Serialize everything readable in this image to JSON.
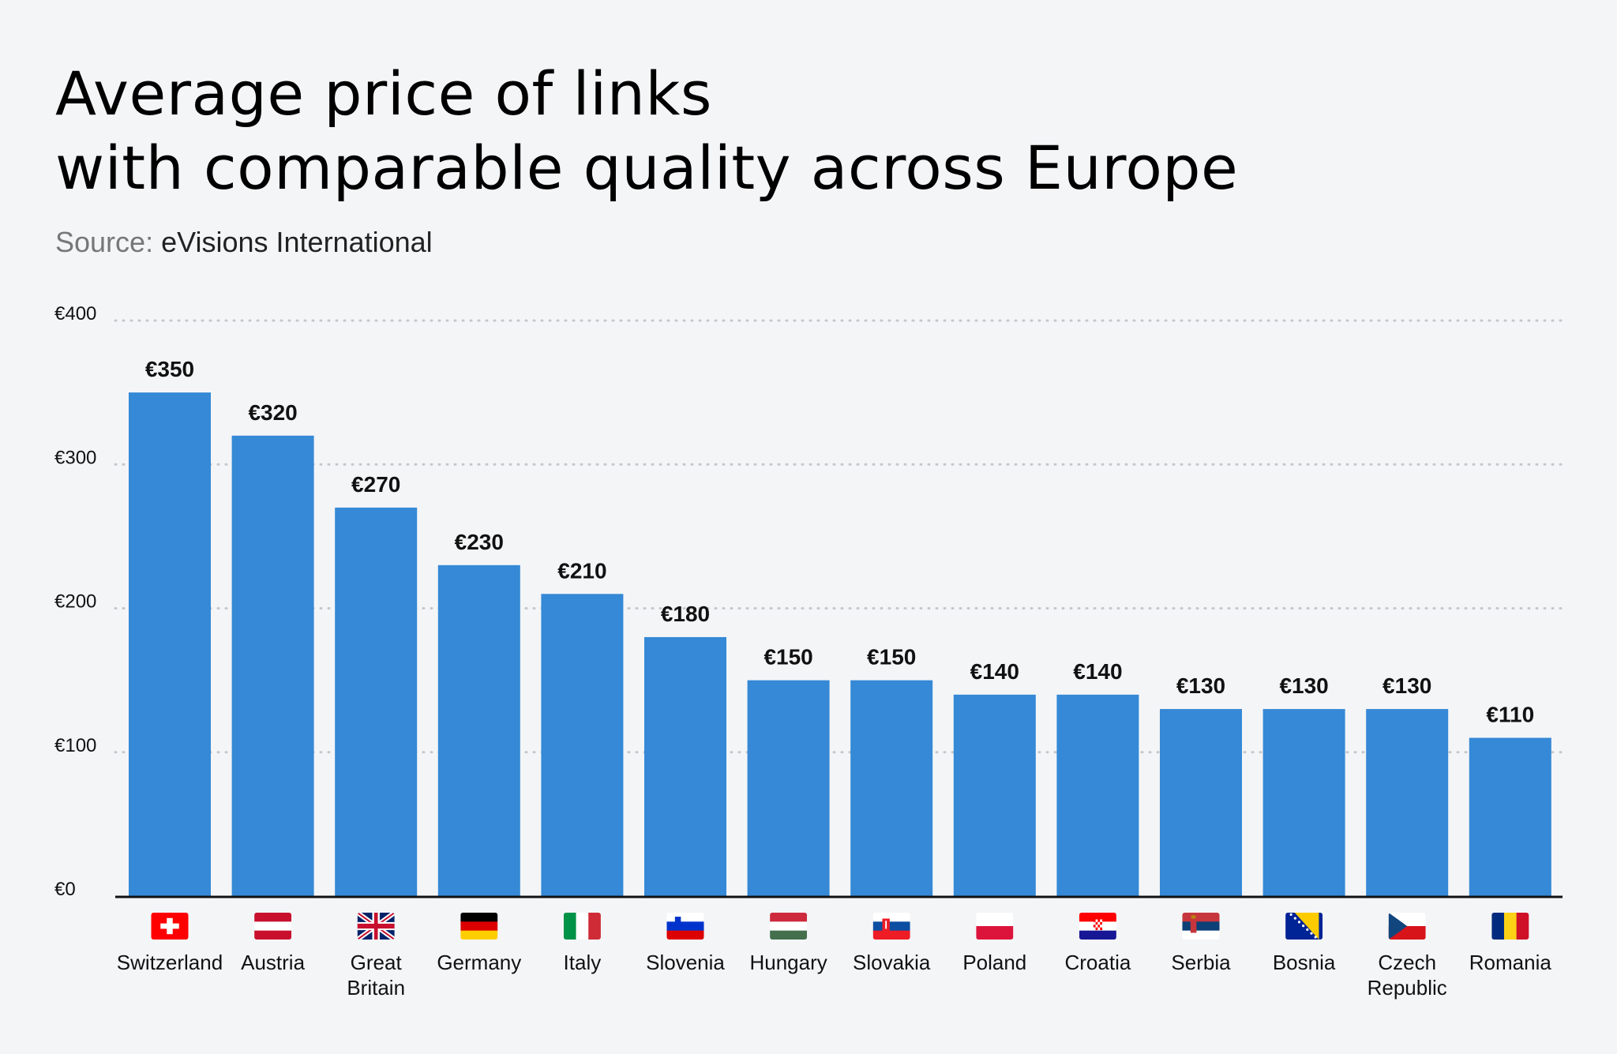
{
  "title_line1": "Average price of links",
  "title_line2": "with comparable quality across Europe",
  "source_label": "Source:",
  "source_value": "eVisions International",
  "chart_data": {
    "type": "bar",
    "title": "Average price of links with comparable quality across Europe",
    "xlabel": "",
    "ylabel": "",
    "ylim": [
      0,
      400
    ],
    "yticks": [
      0,
      100,
      200,
      300,
      400
    ],
    "ytick_labels": [
      "€0",
      "€100",
      "€200",
      "€300",
      "€400"
    ],
    "grid": "horizontal dotted",
    "bar_color": "#3589d6",
    "categories": [
      [
        "Switzerland"
      ],
      [
        "Austria"
      ],
      [
        "Great",
        "Britain"
      ],
      [
        "Germany"
      ],
      [
        "Italy"
      ],
      [
        "Slovenia"
      ],
      [
        "Hungary"
      ],
      [
        "Slovakia"
      ],
      [
        "Poland"
      ],
      [
        "Croatia"
      ],
      [
        "Serbia"
      ],
      [
        "Bosnia"
      ],
      [
        "Czech",
        "Republic"
      ],
      [
        "Romania"
      ]
    ],
    "flags": [
      "flag-ch-icon",
      "flag-at-icon",
      "flag-gb-icon",
      "flag-de-icon",
      "flag-it-icon",
      "flag-si-icon",
      "flag-hu-icon",
      "flag-sk-icon",
      "flag-pl-icon",
      "flag-hr-icon",
      "flag-rs-icon",
      "flag-ba-icon",
      "flag-cz-icon",
      "flag-ro-icon"
    ],
    "values": [
      350,
      320,
      270,
      230,
      210,
      180,
      150,
      150,
      140,
      140,
      130,
      130,
      130,
      110
    ],
    "value_labels": [
      "€350",
      "€320",
      "€270",
      "€230",
      "€210",
      "€180",
      "€150",
      "€150",
      "€140",
      "€140",
      "€130",
      "€130",
      "€130",
      "€110"
    ]
  }
}
